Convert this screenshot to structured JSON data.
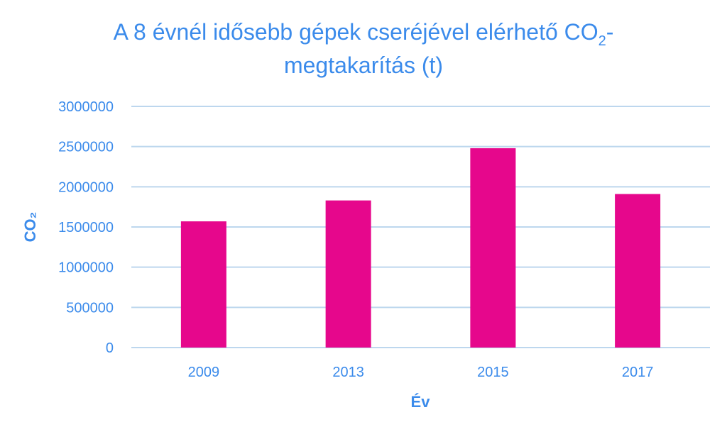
{
  "chart_data": {
    "type": "bar",
    "title_line1": "A 8 évnél idősebb gépek cseréjével elérhető CO",
    "title_sub": "2",
    "title_line1_suffix": "-",
    "title_line2": "megtakarítás (t)",
    "categories": [
      "2009",
      "2013",
      "2015",
      "2017"
    ],
    "values": [
      1570000,
      1830000,
      2480000,
      1910000
    ],
    "ylim": [
      0,
      3000000
    ],
    "yticks": [
      0,
      500000,
      1000000,
      1500000,
      2000000,
      2500000,
      3000000
    ],
    "ytick_labels": [
      "0",
      "500000",
      "1000000",
      "1500000",
      "2000000",
      "2500000",
      "3000000"
    ],
    "xlabel": "Év",
    "ylabel": "CO₂",
    "grid": true,
    "colors": {
      "bar": "#E6078C",
      "text": "#3B8BEB",
      "grid": "#BDD7EE"
    }
  }
}
